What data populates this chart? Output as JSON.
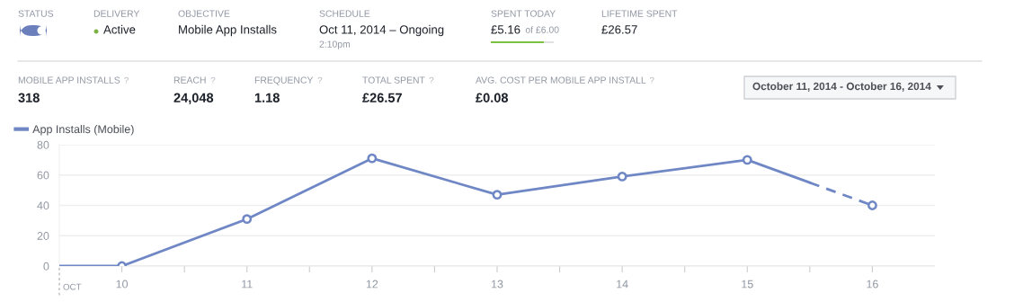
{
  "chart_data": {
    "type": "line",
    "series": [
      {
        "name": "App Installs (Mobile)",
        "color": "#6f87c5",
        "x": [
          9.5,
          10,
          11,
          12,
          13,
          14,
          15,
          15.5
        ],
        "values": [
          0,
          0,
          31,
          71,
          47,
          59,
          70,
          55
        ],
        "line_style": "solid",
        "marker": "none"
      },
      {
        "color": "#6f87c5",
        "x": [
          15.5,
          16
        ],
        "values": [
          55,
          40
        ],
        "line_style": "dashed",
        "marker": "none"
      },
      {
        "type": "scatter",
        "color": "#6f87c5",
        "x": [
          10,
          11,
          12,
          13,
          14,
          15,
          16
        ],
        "values": [
          0,
          31,
          71,
          47,
          59,
          70,
          40
        ],
        "marker": "circle"
      }
    ],
    "xlim": [
      9.5,
      16.5
    ],
    "xticks": [
      10,
      {
        "value": 10.5,
        "label": null
      },
      11,
      {
        "value": 11.5,
        "label": null
      },
      12,
      {
        "value": 12.5,
        "label": null
      },
      13,
      {
        "value": 13.5,
        "label": null
      },
      14,
      {
        "value": 14.5,
        "label": null
      },
      15,
      {
        "value": 15.5,
        "label": null
      },
      16
    ],
    "ylim": [
      0,
      80
    ],
    "yticks": [
      0,
      20,
      40,
      60,
      80
    ],
    "grid": "y",
    "legend": "top left",
    "annotations": [
      "STATUS",
      "DELIVERY",
      "Active",
      "OBJECTIVE",
      "Mobile App Installs",
      "SCHEDULE",
      "Oct 11, 2014 – Ongoing",
      "2:10pm",
      "SPENT TODAY",
      "£5.16",
      "of £6.00",
      "LIFETIME SPENT",
      "£26.57",
      "MOBILE APP INSTALLS",
      "?",
      "318",
      "REACH",
      "?",
      "24,048",
      "FREQUENCY",
      "?",
      "1.18",
      "TOTAL SPENT",
      "?",
      "£26.57",
      "AVG. COST PER MOBILE APP INSTALL",
      "?",
      "£0.08",
      "October 11, 2014 - October 16, 2014",
      "OCT"
    ]
  }
}
